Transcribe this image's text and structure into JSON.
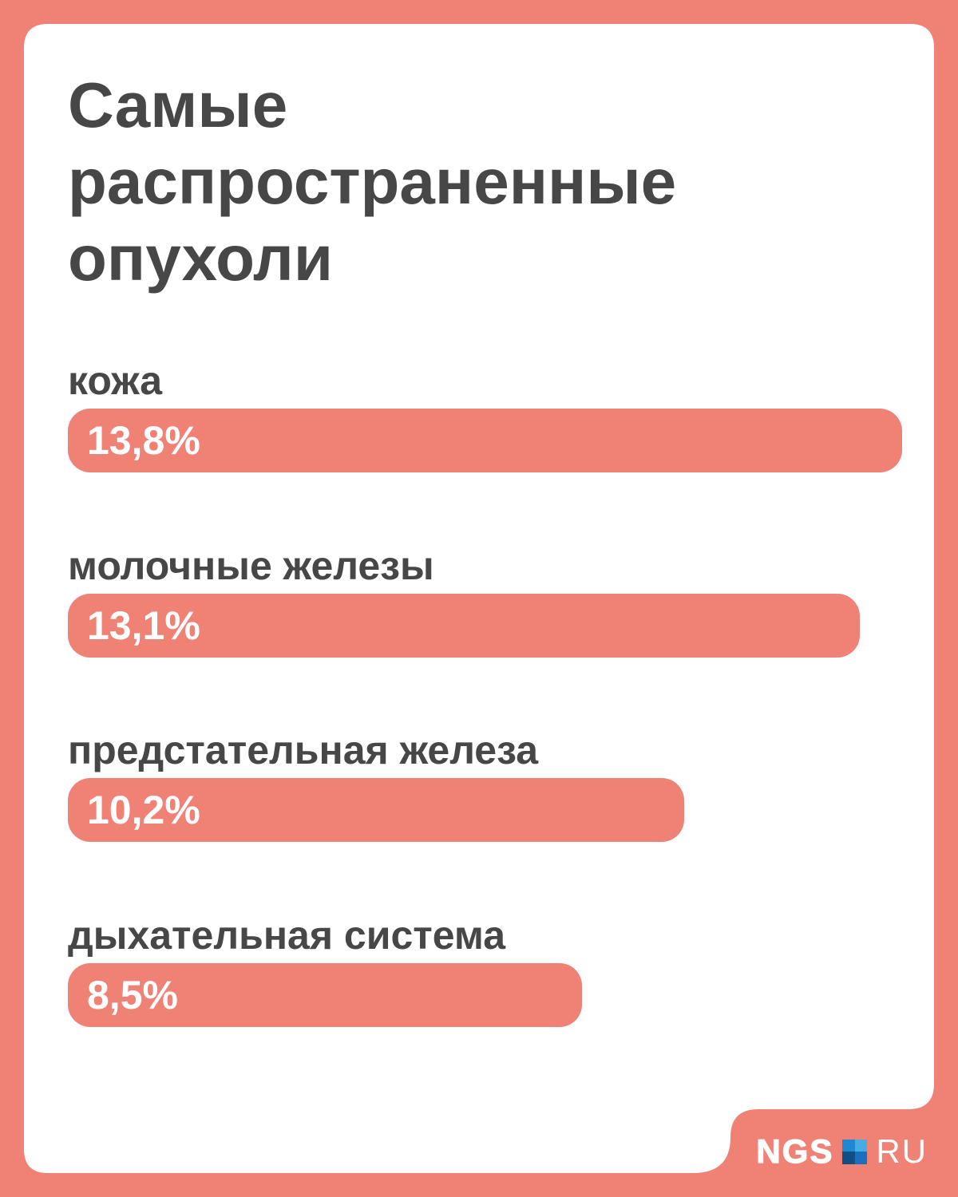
{
  "page": {
    "background_color": "#EF8275",
    "card_color": "#FFFFFF"
  },
  "title": {
    "text": "Самые распространенные опухоли",
    "color": "#474747"
  },
  "chart_data": {
    "type": "bar",
    "orientation": "horizontal",
    "title": "Самые распространенные опухоли",
    "categories": [
      "кожа",
      "молочные железы",
      "предстательная железа",
      "дыхательная система"
    ],
    "values": [
      13.8,
      13.1,
      10.2,
      8.5
    ],
    "value_labels": [
      "13,8%",
      "13,1%",
      "10,2%",
      "8,5%"
    ],
    "unit": "%",
    "xlim": [
      0,
      13.8
    ],
    "grid": false,
    "legend": false,
    "bar_color": "#EF8275",
    "value_label_color": "#FFFFFF",
    "category_label_color": "#474747"
  },
  "logo": {
    "name": "NGS.RU",
    "bold_text": "NGS",
    "regular_text": "RU",
    "text_color": "#FFFFFF",
    "square_colors": {
      "top_left": "#1E88D2",
      "top_right": "#45ADE4",
      "bottom_left": "#114E86",
      "bottom_right": "#1A6FC0"
    }
  }
}
